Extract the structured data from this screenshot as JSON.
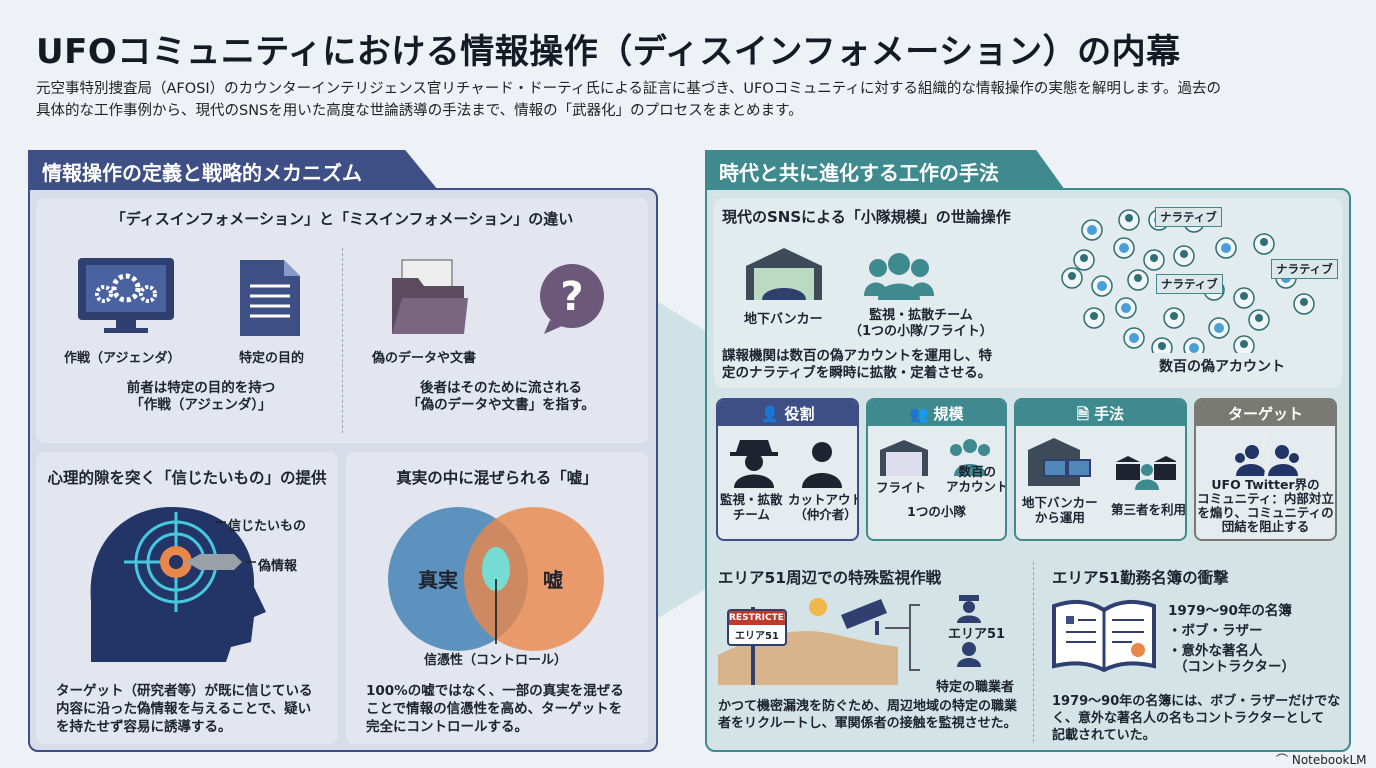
{
  "title": "UFOコミュニティにおける情報操作（ディスインフォメーション）の内幕",
  "subtitle": [
    "元空事特別捜査局（AFOSI）のカウンターインテリジェンス官リチャード・ドーティ氏による証言に基づき、UFOコミュニティに対する組織的な情報操作の実態を解明します。過去の",
    "具体的な工作事例から、現代のSNSを用いた高度な世論誘導の手法まで、情報の「武器化」のプロセスをまとめます。"
  ],
  "left": {
    "tab": "情報操作の定義と戦略的メカニズム",
    "diff": {
      "heading": "「ディスインフォメーション」と「ミスインフォメーション」の違い",
      "labels": [
        "作戦（アジェンダ）",
        "特定の目的",
        "偽のデータや文書"
      ],
      "left_text": [
        "前者は特定の目的を持つ",
        "「作戦（アジェンダ）」"
      ],
      "right_text": [
        "後者はそのために流される",
        "「偽のデータや文書」を指す。"
      ],
      "icons": [
        "monitor-gears-icon",
        "document-icon",
        "folder-icon",
        "question-bubble-icon"
      ]
    },
    "belief": {
      "heading": "心理的隙を突く「信じたいもの」の提供",
      "label_a": "信じたいもの",
      "label_b": "偽情報",
      "text": [
        "ターゲット（研究者等）が既に信じている",
        "内容に沿った偽情報を与えることで、疑い",
        "を持たせず容易に誘導する。"
      ]
    },
    "lie": {
      "heading": "真実の中に混ぜられる「嘘」",
      "circle_a": "真実",
      "circle_b": "嘘",
      "overlap": "信憑性（コントロール）",
      "text": [
        "100%の嘘ではなく、一部の真実を混ぜる",
        "ことで情報の信憑性を高め、ターゲットを",
        "完全にコントロールする。"
      ]
    }
  },
  "right": {
    "tab": "時代と共に進化する工作の手法",
    "sns": {
      "heading": "現代のSNSによる「小隊規模」の世論操作",
      "bunker": "地下バンカー",
      "team": [
        "監視・拡散チーム",
        "（1つの小隊/フライト）"
      ],
      "text": [
        "諜報機関は数百の偽アカウントを運用し、特",
        "定のナラティブを瞬時に拡散・定着させる。"
      ],
      "bubble": "ナラティブ",
      "accounts": "数百の偽アカウント"
    },
    "cards": [
      {
        "title": "役割",
        "icon": "person-icon",
        "color": "#3e4f86",
        "items": [
          [
            "監視・拡散",
            "チーム"
          ],
          [
            "カットアウト",
            "（仲介者）"
          ]
        ]
      },
      {
        "title": "規模",
        "icon": "group-icon",
        "color": "#3f8a8f",
        "items": [
          [
            "フライト"
          ],
          [
            "数百の",
            "アカウント"
          ]
        ],
        "note": "1つの小隊"
      },
      {
        "title": "手法",
        "icon": "document-icon",
        "color": "#3f8a8f",
        "items": [
          [
            "地下バンカー",
            "から運用"
          ],
          [
            "第三者を利用"
          ]
        ]
      },
      {
        "title": "ターゲット",
        "icon": "",
        "color": "#7a7a74",
        "items": [
          [
            "UFO Twitter界の",
            "コミュニティ：内部対立",
            "を煽り、コミュニティの",
            "団結を阻止する"
          ]
        ]
      }
    ],
    "area51": {
      "heading": "エリア51周辺での特殊監視作戦",
      "sign_top": "RESTRICTED",
      "sign_bottom": "エリア51",
      "label_a": "エリア51",
      "label_b": "特定の職業者",
      "text": [
        "かつて機密漏洩を防ぐため、周辺地域の特定の職業",
        "者をリクルートし、軍関係者の接触を監視させた。"
      ]
    },
    "roster": {
      "heading": "エリア51勤務名簿の衝撃",
      "list_title": "1979～90年の名簿",
      "items": [
        "・ボブ・ラザー",
        "・意外な著名人",
        "（コントラクター）"
      ],
      "text": [
        "1979～90年の名簿には、ボブ・ラザーだけでな",
        "く、意外な著名人の名もコントラクターとして",
        "記載されていた。"
      ]
    }
  },
  "footer": {
    "brand": "NotebookLM"
  },
  "colors": {
    "navy": "#3e4f86",
    "teal": "#3f8a8f",
    "orange": "#e8874a",
    "blue": "#4f88b8"
  }
}
